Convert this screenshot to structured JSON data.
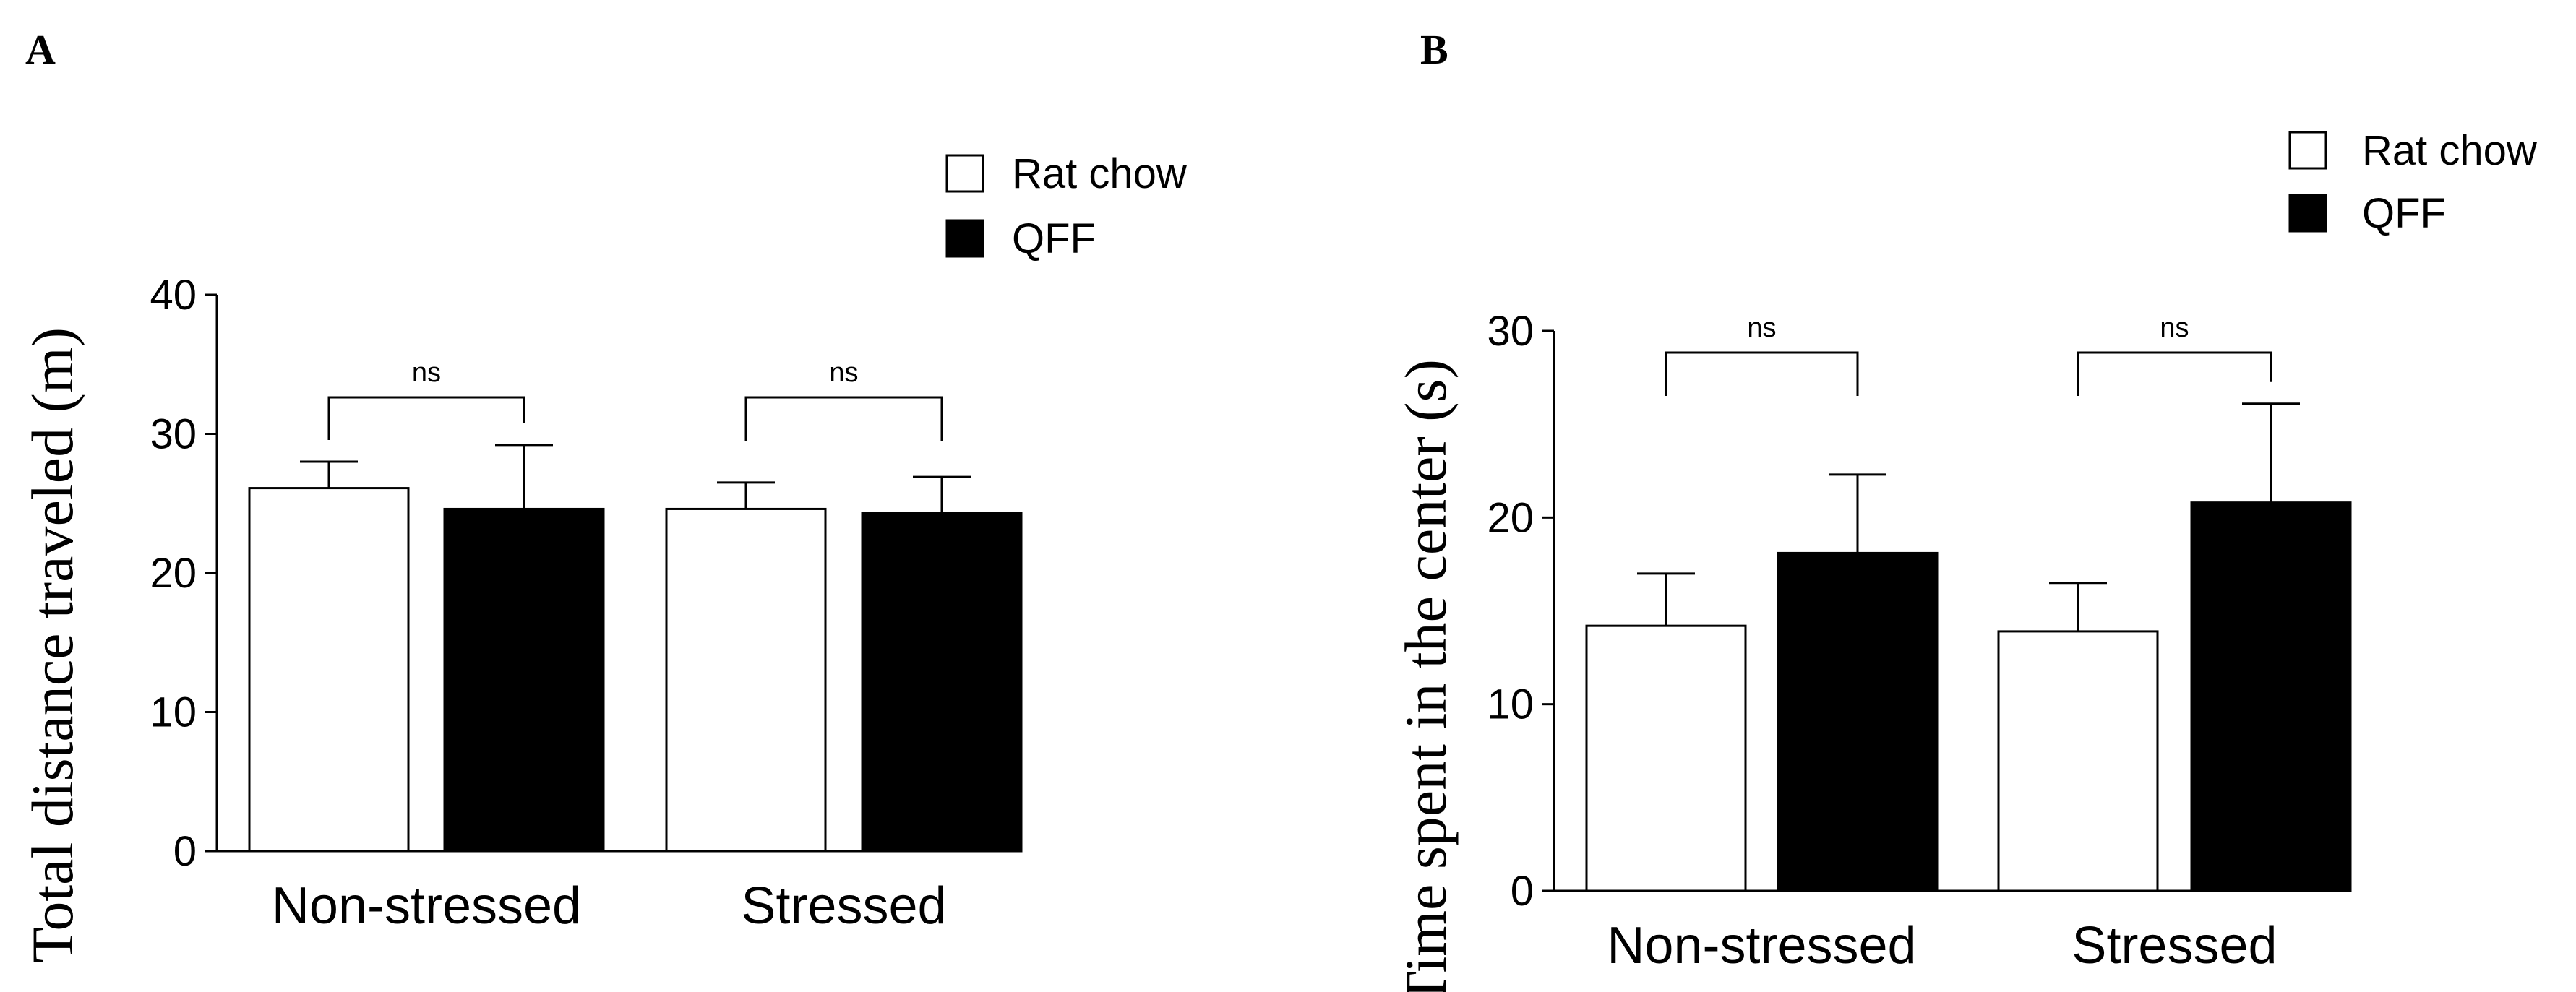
{
  "figure": {
    "panel_labels": [
      "A",
      "B"
    ]
  },
  "chart_data": [
    {
      "type": "bar",
      "panel": "A",
      "title": "",
      "xlabel": "",
      "ylabel": "Total distance traveled (m)",
      "ylim": [
        0,
        40
      ],
      "yticks": [
        0,
        10,
        20,
        30,
        40
      ],
      "categories": [
        "Non-stressed",
        "Stressed"
      ],
      "grid": false,
      "legend_position": "top-right",
      "series": [
        {
          "name": "Rat chow",
          "color": "#ffffff",
          "values": [
            26.1,
            24.6
          ],
          "errors": [
            1.9,
            1.9
          ]
        },
        {
          "name": "QFF",
          "color": "#000000",
          "values": [
            24.6,
            24.3
          ],
          "errors": [
            4.6,
            2.6
          ]
        }
      ],
      "annotations": [
        {
          "category": "Non-stressed",
          "text": "ns"
        },
        {
          "category": "Stressed",
          "text": "ns"
        }
      ]
    },
    {
      "type": "bar",
      "panel": "B",
      "title": "",
      "xlabel": "",
      "ylabel": "Time spent in the center (s)",
      "ylim": [
        0,
        30
      ],
      "yticks": [
        0,
        10,
        20,
        30
      ],
      "categories": [
        "Non-stressed",
        "Stressed"
      ],
      "grid": false,
      "legend_position": "top-right",
      "series": [
        {
          "name": "Rat chow",
          "color": "#ffffff",
          "values": [
            14.2,
            13.9
          ],
          "errors": [
            2.8,
            2.6
          ]
        },
        {
          "name": "QFF",
          "color": "#000000",
          "values": [
            18.1,
            20.8
          ],
          "errors": [
            4.2,
            5.3
          ]
        }
      ],
      "annotations": [
        {
          "category": "Non-stressed",
          "text": "ns"
        },
        {
          "category": "Stressed",
          "text": "ns"
        }
      ]
    }
  ]
}
